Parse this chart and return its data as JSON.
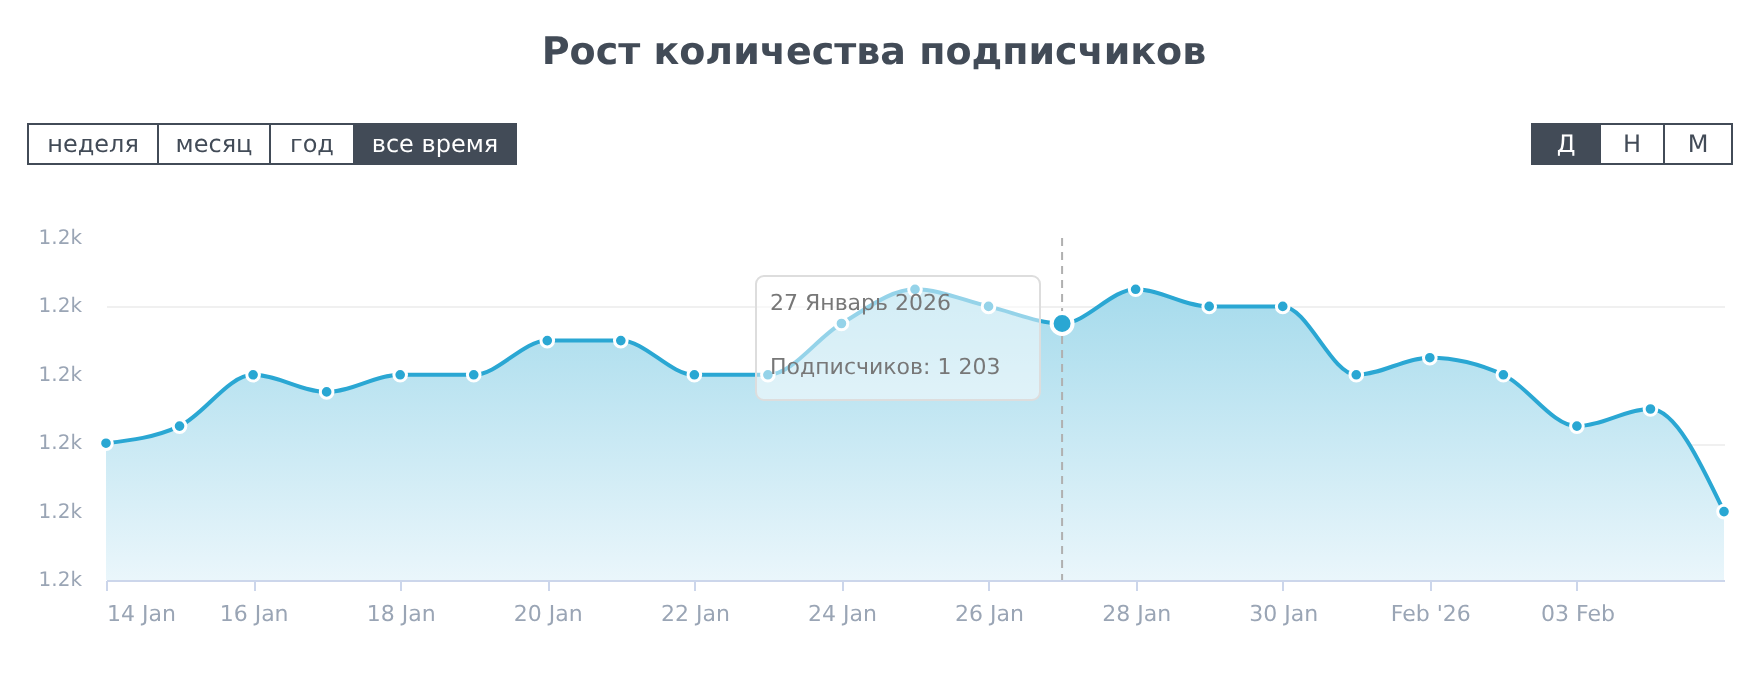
{
  "chart_data": {
    "type": "area",
    "title": "Рост количества подписчиков",
    "x": [
      "2026-01-14",
      "2026-01-15",
      "2026-01-16",
      "2026-01-17",
      "2026-01-18",
      "2026-01-19",
      "2026-01-20",
      "2026-01-21",
      "2026-01-22",
      "2026-01-23",
      "2026-01-24",
      "2026-01-25",
      "2026-01-26",
      "2026-01-27",
      "2026-01-28",
      "2026-01-29",
      "2026-01-30",
      "2026-01-31",
      "2026-02-01",
      "2026-02-02",
      "2026-02-03",
      "2026-02-04",
      "2026-02-05"
    ],
    "series": [
      {
        "color": "#2aa7d3",
        "values": [
          1196,
          1197,
          1200,
          1199,
          1200,
          1200,
          1202,
          1202,
          1200,
          1200,
          1203,
          1205,
          1204,
          1203,
          1205,
          1204,
          1204,
          1200,
          1201,
          1200,
          1197,
          1198,
          1192
        ]
      }
    ],
    "xlim": [
      "2026-01-14",
      "2026-02-05"
    ],
    "xticks": [
      {
        "value": "2026-01-14",
        "label": "14 Jan"
      },
      {
        "value": "2026-01-16",
        "label": "16 Jan"
      },
      {
        "value": "2026-01-18",
        "label": "18 Jan"
      },
      {
        "value": "2026-01-20",
        "label": "20 Jan"
      },
      {
        "value": "2026-01-22",
        "label": "22 Jan"
      },
      {
        "value": "2026-01-24",
        "label": "24 Jan"
      },
      {
        "value": "2026-01-26",
        "label": "26 Jan"
      },
      {
        "value": "2026-01-28",
        "label": "28 Jan"
      },
      {
        "value": "2026-01-30",
        "label": "30 Jan"
      },
      {
        "value": "2026-02-01",
        "label": "Feb '26"
      },
      {
        "value": "2026-02-03",
        "label": "03 Feb"
      }
    ],
    "ylim": [
      1188,
      1208
    ],
    "yticks": [
      {
        "value": 1188,
        "label": "1.2k"
      },
      {
        "value": 1192,
        "label": "1.2k"
      },
      {
        "value": 1196,
        "label": "1.2k"
      },
      {
        "value": 1200,
        "label": "1.2k"
      },
      {
        "value": 1204,
        "label": "1.2k"
      },
      {
        "value": 1208,
        "label": "1.2k"
      }
    ],
    "grid": "y",
    "marker": "circle",
    "line_style": "solid",
    "ref_lines": [
      {
        "axis": "x",
        "value": "2026-01-27",
        "color": "#b0b0b0",
        "line_style": "dashed"
      }
    ],
    "annotations": [
      "27 Январь 2026",
      "Подписчиков:  1 203",
      "неделя",
      "месяц",
      "год",
      "все время",
      "Д",
      "Н",
      "М"
    ]
  }
}
